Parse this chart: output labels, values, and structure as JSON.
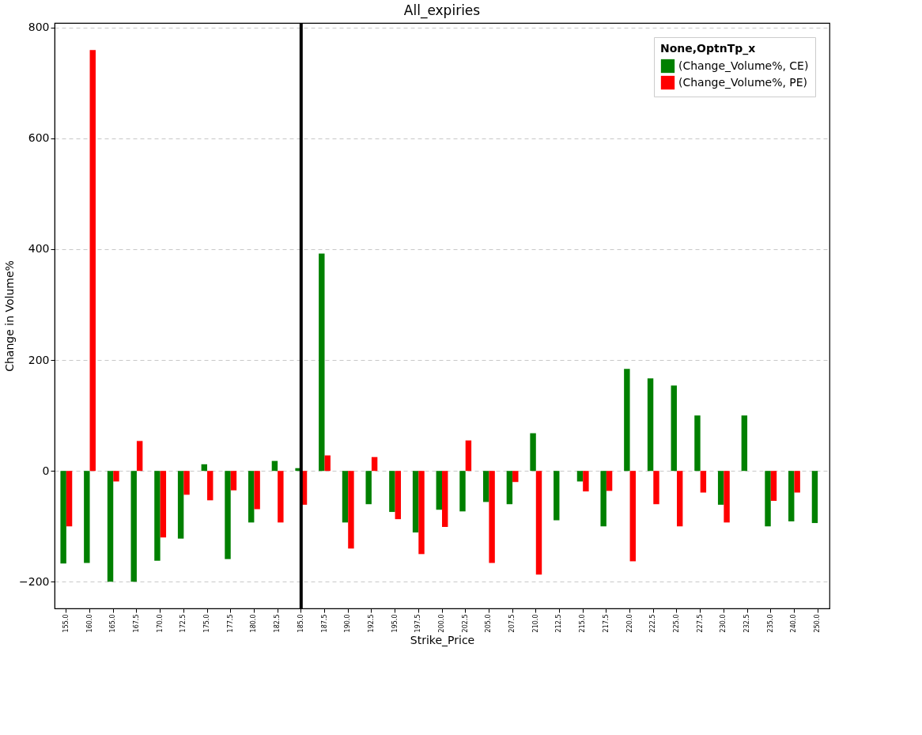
{
  "chart_data": {
    "type": "bar",
    "title": "All_expiries",
    "xlabel": "Strike_Price",
    "ylabel": "Change in Volume%",
    "legend_title": "None,OptnTp_x",
    "categories": [
      "155.0",
      "160.0",
      "165.0",
      "167.5",
      "170.0",
      "172.5",
      "175.0",
      "177.5",
      "180.0",
      "182.5",
      "185.0",
      "187.5",
      "190.0",
      "192.5",
      "195.0",
      "197.5",
      "200.0",
      "202.5",
      "205.0",
      "207.5",
      "210.0",
      "212.5",
      "215.0",
      "217.5",
      "220.0",
      "222.5",
      "225.0",
      "227.5",
      "230.0",
      "232.5",
      "235.0",
      "240.0",
      "250.0"
    ],
    "series": [
      {
        "name": "(Change_Volume%, CE)",
        "color": "#008000",
        "values": [
          -167,
          -166,
          -200,
          -200,
          -162,
          -122,
          12,
          -159,
          -93,
          18,
          5,
          392,
          -93,
          -60,
          -74,
          -111,
          -70,
          -73,
          -56,
          -60,
          68,
          -89,
          -19,
          -100,
          184,
          167,
          154,
          100,
          -61,
          100,
          -100,
          -91,
          -94
        ]
      },
      {
        "name": "(Change_Volume%, PE)",
        "color": "#ff0000",
        "values": [
          -100,
          759,
          -19,
          54,
          -120,
          -43,
          -53,
          -35,
          -69,
          -93,
          -61,
          28,
          -140,
          25,
          -87,
          -150,
          -101,
          55,
          -166,
          -20,
          -187,
          null,
          -37,
          -36,
          -163,
          -60,
          -100,
          -39,
          -93,
          null,
          -54,
          -39,
          null
        ]
      }
    ],
    "ylim": [
      -248,
      808
    ],
    "yticks": [
      {
        "value": -200,
        "label": "−200"
      },
      0,
      200,
      400,
      600,
      800
    ],
    "grid": "y",
    "legend": "top right",
    "ref_lines": [
      {
        "axis": "x",
        "value": "185.0",
        "color": "#000000"
      }
    ]
  }
}
